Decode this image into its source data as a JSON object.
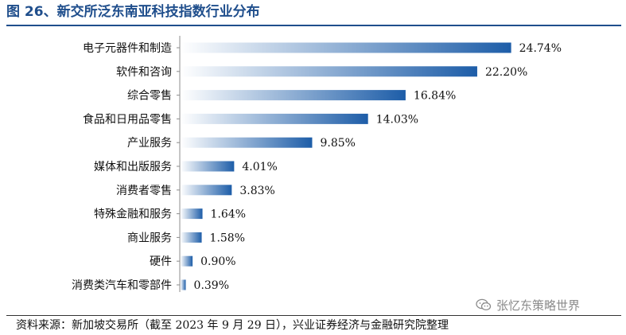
{
  "figure_title": "图 26、新交所泛东南亚科技指数行业分布",
  "source_note": "资料来源：新加坡交易所（截至 2023 年 9 月 29 日），兴业证券经济与金融研究院整理",
  "watermark": {
    "text": "张忆东策略世界",
    "icon": "wechat-icon"
  },
  "colors": {
    "title": "#1f4e8c",
    "bar_dark": "#1d5da8",
    "bar_light": "#ffffff"
  },
  "chart_data": {
    "type": "bar",
    "orientation": "horizontal",
    "title": "",
    "xlabel": "",
    "ylabel": "",
    "xlim": [
      0,
      25
    ],
    "grid": false,
    "legend": "none",
    "value_format": "percent",
    "categories": [
      "电子元器件和制造",
      "软件和咨询",
      "综合零售",
      "食品和日用品零售",
      "产业服务",
      "媒体和出版服务",
      "消费者零售",
      "特殊金融和服务",
      "商业服务",
      "硬件",
      "消费类汽车和零部件"
    ],
    "values": [
      24.74,
      22.2,
      16.84,
      14.03,
      9.85,
      4.01,
      3.83,
      1.64,
      1.58,
      0.9,
      0.39
    ],
    "value_labels": [
      "24.74%",
      "22.20%",
      "16.84%",
      "14.03%",
      "9.85%",
      "4.01%",
      "3.83%",
      "1.64%",
      "1.58%",
      "0.90%",
      "0.39%"
    ]
  }
}
